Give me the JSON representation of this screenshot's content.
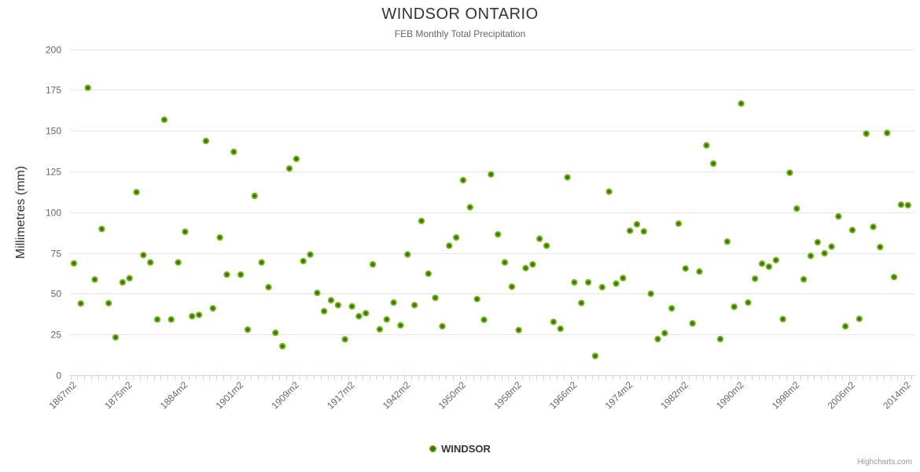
{
  "header": {
    "title": "WINDSOR ONTARIO",
    "subtitle": "FEB Monthly Total Precipitation"
  },
  "legend": {
    "label": "WINDSOR"
  },
  "credits": {
    "label": "Highcharts.com"
  },
  "colors": {
    "marker_body": "#6cac0e",
    "marker_core": "#336f0a",
    "marker_edge": "#8fc43e",
    "gridline": "#e6e6e6",
    "axis_line": "#ccd6eb",
    "axis_label": "#666666",
    "title_text": "#333333"
  },
  "chart_data": {
    "type": "scatter",
    "title": "WINDSOR ONTARIO",
    "subtitle": "FEB Monthly Total Precipitation",
    "xlabel": "",
    "ylabel": "Millimetres (mm)",
    "ylim": [
      0,
      200
    ],
    "ytick_interval": 25,
    "grid": "horizontal",
    "legend_position": "bottom-center",
    "n_points": 121,
    "xtick_every": 8,
    "xtick_labels": [
      "1867m2",
      "1875m2",
      "1884m2",
      "1901m2",
      "1909m2",
      "1917m2",
      "1942m2",
      "1950m2",
      "1958m2",
      "1966m2",
      "1974m2",
      "1982m2",
      "1990m2",
      "1998m2",
      "2006m2",
      "2014m2"
    ],
    "series": [
      {
        "name": "WINDSOR",
        "values": [
          68.6,
          44.0,
          176.3,
          58.7,
          89.7,
          44.2,
          23.2,
          57.0,
          59.5,
          112.3,
          73.7,
          69.2,
          34.2,
          156.7,
          34.2,
          69.2,
          88.0,
          36.2,
          37.0,
          143.7,
          41.0,
          84.5,
          61.7,
          137.0,
          61.7,
          28.0,
          110.0,
          69.2,
          54.0,
          26.0,
          17.8,
          126.8,
          132.7,
          70.0,
          74.0,
          50.5,
          39.3,
          46.0,
          43.0,
          22.0,
          42.2,
          36.2,
          38.0,
          68.0,
          28.2,
          34.2,
          44.6,
          30.6,
          74.1,
          43.0,
          94.6,
          62.3,
          47.5,
          30.0,
          79.4,
          84.5,
          119.6,
          103.0,
          46.7,
          34.0,
          123.2,
          86.4,
          69.2,
          54.3,
          27.7,
          65.7,
          68.0,
          83.7,
          79.4,
          32.7,
          28.5,
          121.4,
          57.0,
          44.3,
          57.0,
          11.8,
          54.0,
          112.6,
          56.2,
          59.6,
          88.6,
          92.6,
          88.2,
          50.0,
          22.2,
          25.8,
          41.0,
          93.0,
          65.5,
          31.8,
          63.6,
          141.0,
          129.8,
          22.2,
          82.0,
          42.0,
          166.6,
          44.6,
          59.2,
          68.4,
          66.6,
          70.6,
          34.4,
          124.2,
          102.2,
          58.8,
          73.2,
          81.6,
          74.8,
          78.9,
          97.4,
          30.0,
          89.0,
          34.6,
          148.2,
          91.0,
          78.6,
          148.6,
          60.2,
          104.6,
          104.3
        ]
      }
    ]
  }
}
